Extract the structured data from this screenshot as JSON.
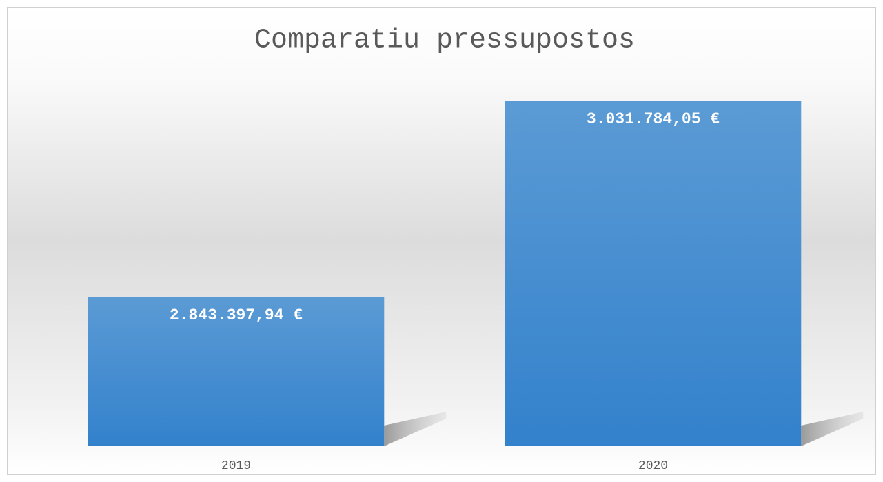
{
  "chart_data": {
    "type": "bar",
    "title": "Comparatiu pressupostos",
    "categories": [
      "2019",
      "2020"
    ],
    "values": [
      2843397.94,
      3031784.05
    ],
    "value_labels": [
      "2.843.397,94 €",
      "3.031.784,05 €"
    ],
    "color": "#4a8fd3",
    "ylim": [
      2700000,
      3100000
    ]
  }
}
